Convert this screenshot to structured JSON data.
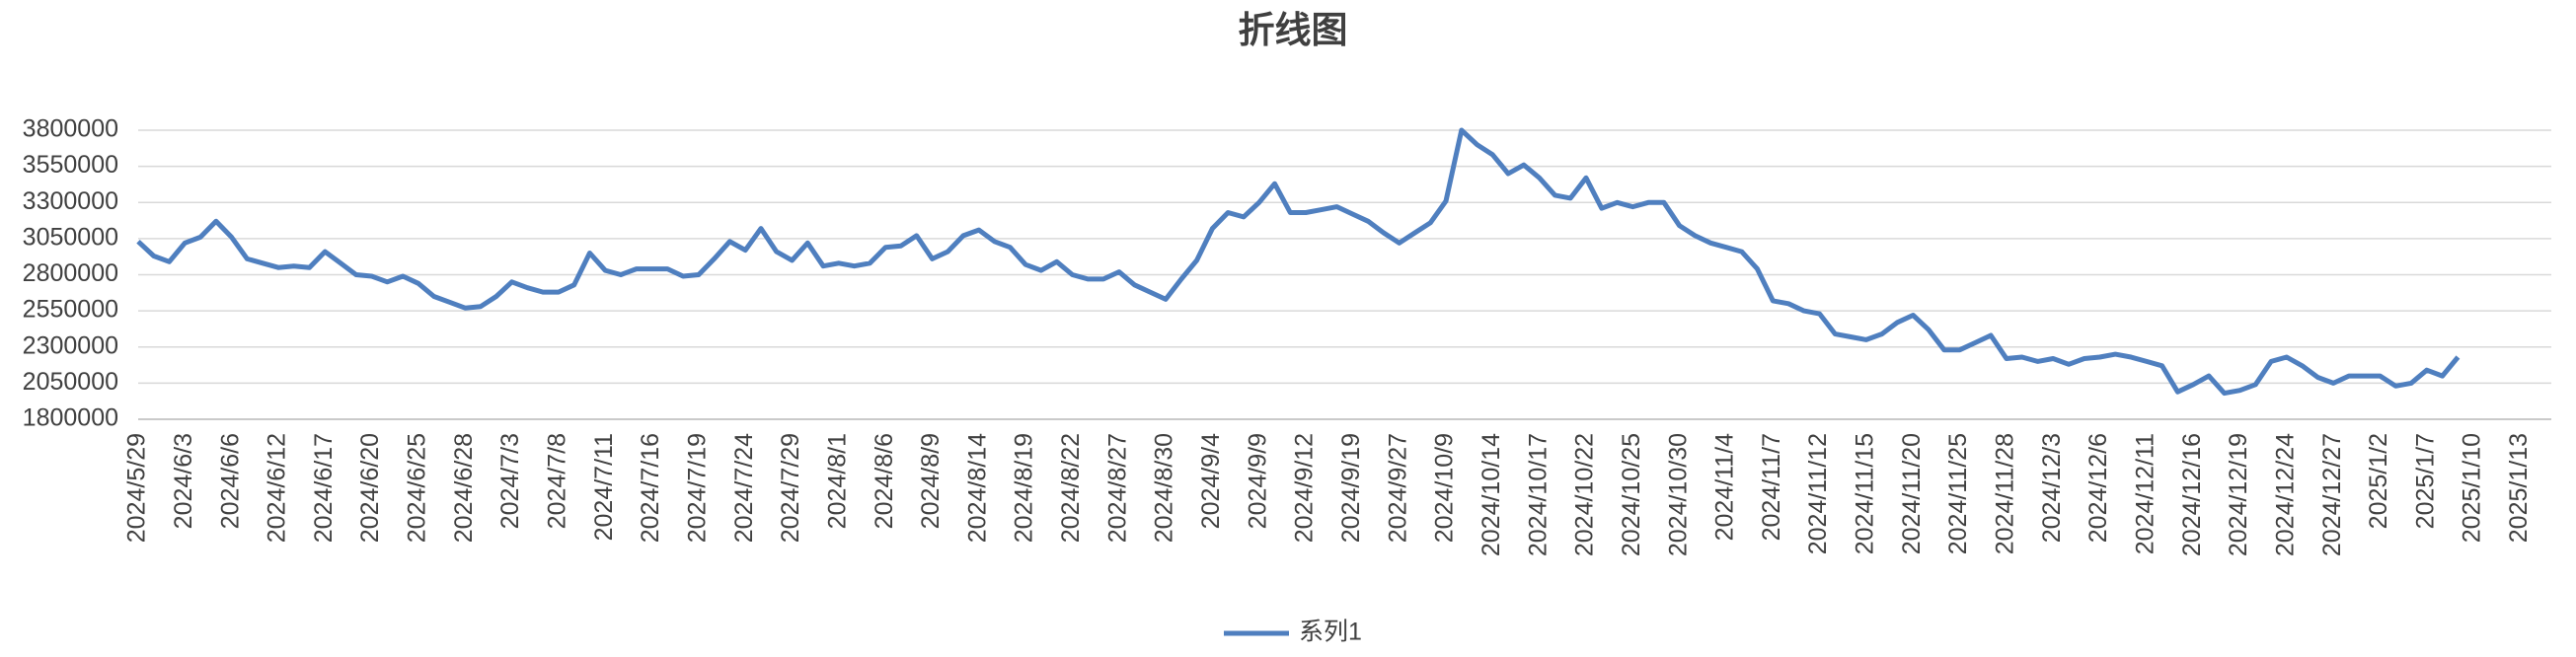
{
  "chart_data": {
    "type": "line",
    "title": "折线图",
    "categories": [
      "2024/5/29",
      null,
      null,
      "2024/6/3",
      null,
      null,
      "2024/6/6",
      null,
      null,
      "2024/6/12",
      null,
      null,
      "2024/6/17",
      null,
      null,
      "2024/6/20",
      null,
      null,
      "2024/6/25",
      null,
      null,
      "2024/6/28",
      null,
      null,
      "2024/7/3",
      null,
      null,
      "2024/7/8",
      null,
      null,
      "2024/7/11",
      null,
      null,
      "2024/7/16",
      null,
      null,
      "2024/7/19",
      null,
      null,
      "2024/7/24",
      null,
      null,
      "2024/7/29",
      null,
      null,
      "2024/8/1",
      null,
      null,
      "2024/8/6",
      null,
      null,
      "2024/8/9",
      null,
      null,
      "2024/8/14",
      null,
      null,
      "2024/8/19",
      null,
      null,
      "2024/8/22",
      null,
      null,
      "2024/8/27",
      null,
      null,
      "2024/8/30",
      null,
      null,
      "2024/9/4",
      null,
      null,
      "2024/9/9",
      null,
      null,
      "2024/9/12",
      null,
      null,
      "2024/9/19",
      null,
      null,
      "2024/9/27",
      null,
      null,
      "2024/10/9",
      null,
      null,
      "2024/10/14",
      null,
      null,
      "2024/10/17",
      null,
      null,
      "2024/10/22",
      null,
      null,
      "2024/10/25",
      null,
      null,
      "2024/10/30",
      null,
      null,
      "2024/11/4",
      null,
      null,
      "2024/11/7",
      null,
      null,
      "2024/11/12",
      null,
      null,
      "2024/11/15",
      null,
      null,
      "2024/11/20",
      null,
      null,
      "2024/11/25",
      null,
      null,
      "2024/11/28",
      null,
      null,
      "2024/12/3",
      null,
      null,
      "2024/12/6",
      null,
      null,
      "2024/12/11",
      null,
      null,
      "2024/12/16",
      null,
      null,
      "2024/12/19",
      null,
      null,
      "2024/12/24",
      null,
      null,
      "2024/12/27",
      null,
      null,
      "2025/1/2",
      null,
      null,
      "2025/1/7",
      null,
      null,
      "2025/1/10",
      null,
      null,
      "2025/1/13",
      null,
      null
    ],
    "series": [
      {
        "name": "系列1",
        "color": "#4f7fbf",
        "values": [
          3030000,
          2930000,
          2890000,
          3020000,
          3060000,
          3170000,
          3060000,
          2910000,
          2880000,
          2850000,
          2860000,
          2850000,
          2960000,
          2880000,
          2800000,
          2790000,
          2750000,
          2790000,
          2740000,
          2650000,
          2610000,
          2570000,
          2580000,
          2650000,
          2750000,
          2710000,
          2680000,
          2680000,
          2730000,
          2950000,
          2830000,
          2800000,
          2840000,
          2840000,
          2840000,
          2790000,
          2800000,
          2910000,
          3030000,
          2970000,
          3120000,
          2960000,
          2900000,
          3020000,
          2860000,
          2880000,
          2860000,
          2880000,
          2990000,
          3000000,
          3070000,
          2910000,
          2960000,
          3070000,
          3110000,
          3030000,
          2990000,
          2870000,
          2830000,
          2890000,
          2800000,
          2770000,
          2770000,
          2820000,
          2730000,
          2680000,
          2630000,
          2770000,
          2900000,
          3120000,
          3230000,
          3200000,
          3300000,
          3430000,
          3230000,
          3230000,
          3250000,
          3270000,
          3220000,
          3170000,
          3090000,
          3020000,
          3090000,
          3160000,
          3310000,
          3800000,
          3700000,
          3630000,
          3500000,
          3560000,
          3470000,
          3350000,
          3330000,
          3470000,
          3260000,
          3300000,
          3270000,
          3300000,
          3300000,
          3140000,
          3070000,
          3020000,
          2990000,
          2960000,
          2840000,
          2620000,
          2600000,
          2550000,
          2530000,
          2390000,
          2370000,
          2350000,
          2390000,
          2470000,
          2520000,
          2420000,
          2280000,
          2280000,
          2330000,
          2380000,
          2220000,
          2230000,
          2200000,
          2220000,
          2180000,
          2220000,
          2230000,
          2250000,
          2230000,
          2200000,
          2170000,
          1990000,
          2040000,
          2100000,
          1980000,
          2000000,
          2040000,
          2200000,
          2230000,
          2170000,
          2090000,
          2050000,
          2100000,
          2100000,
          2100000,
          2030000,
          2050000,
          2140000,
          2100000,
          2230000,
          null,
          null,
          null,
          null,
          null,
          null
        ]
      }
    ],
    "ylim": [
      1800000,
      3800000
    ],
    "yticks": [
      1800000,
      2050000,
      2300000,
      2550000,
      2800000,
      3050000,
      3300000,
      3550000,
      3800000
    ],
    "grid": true,
    "legend": "bottom"
  }
}
